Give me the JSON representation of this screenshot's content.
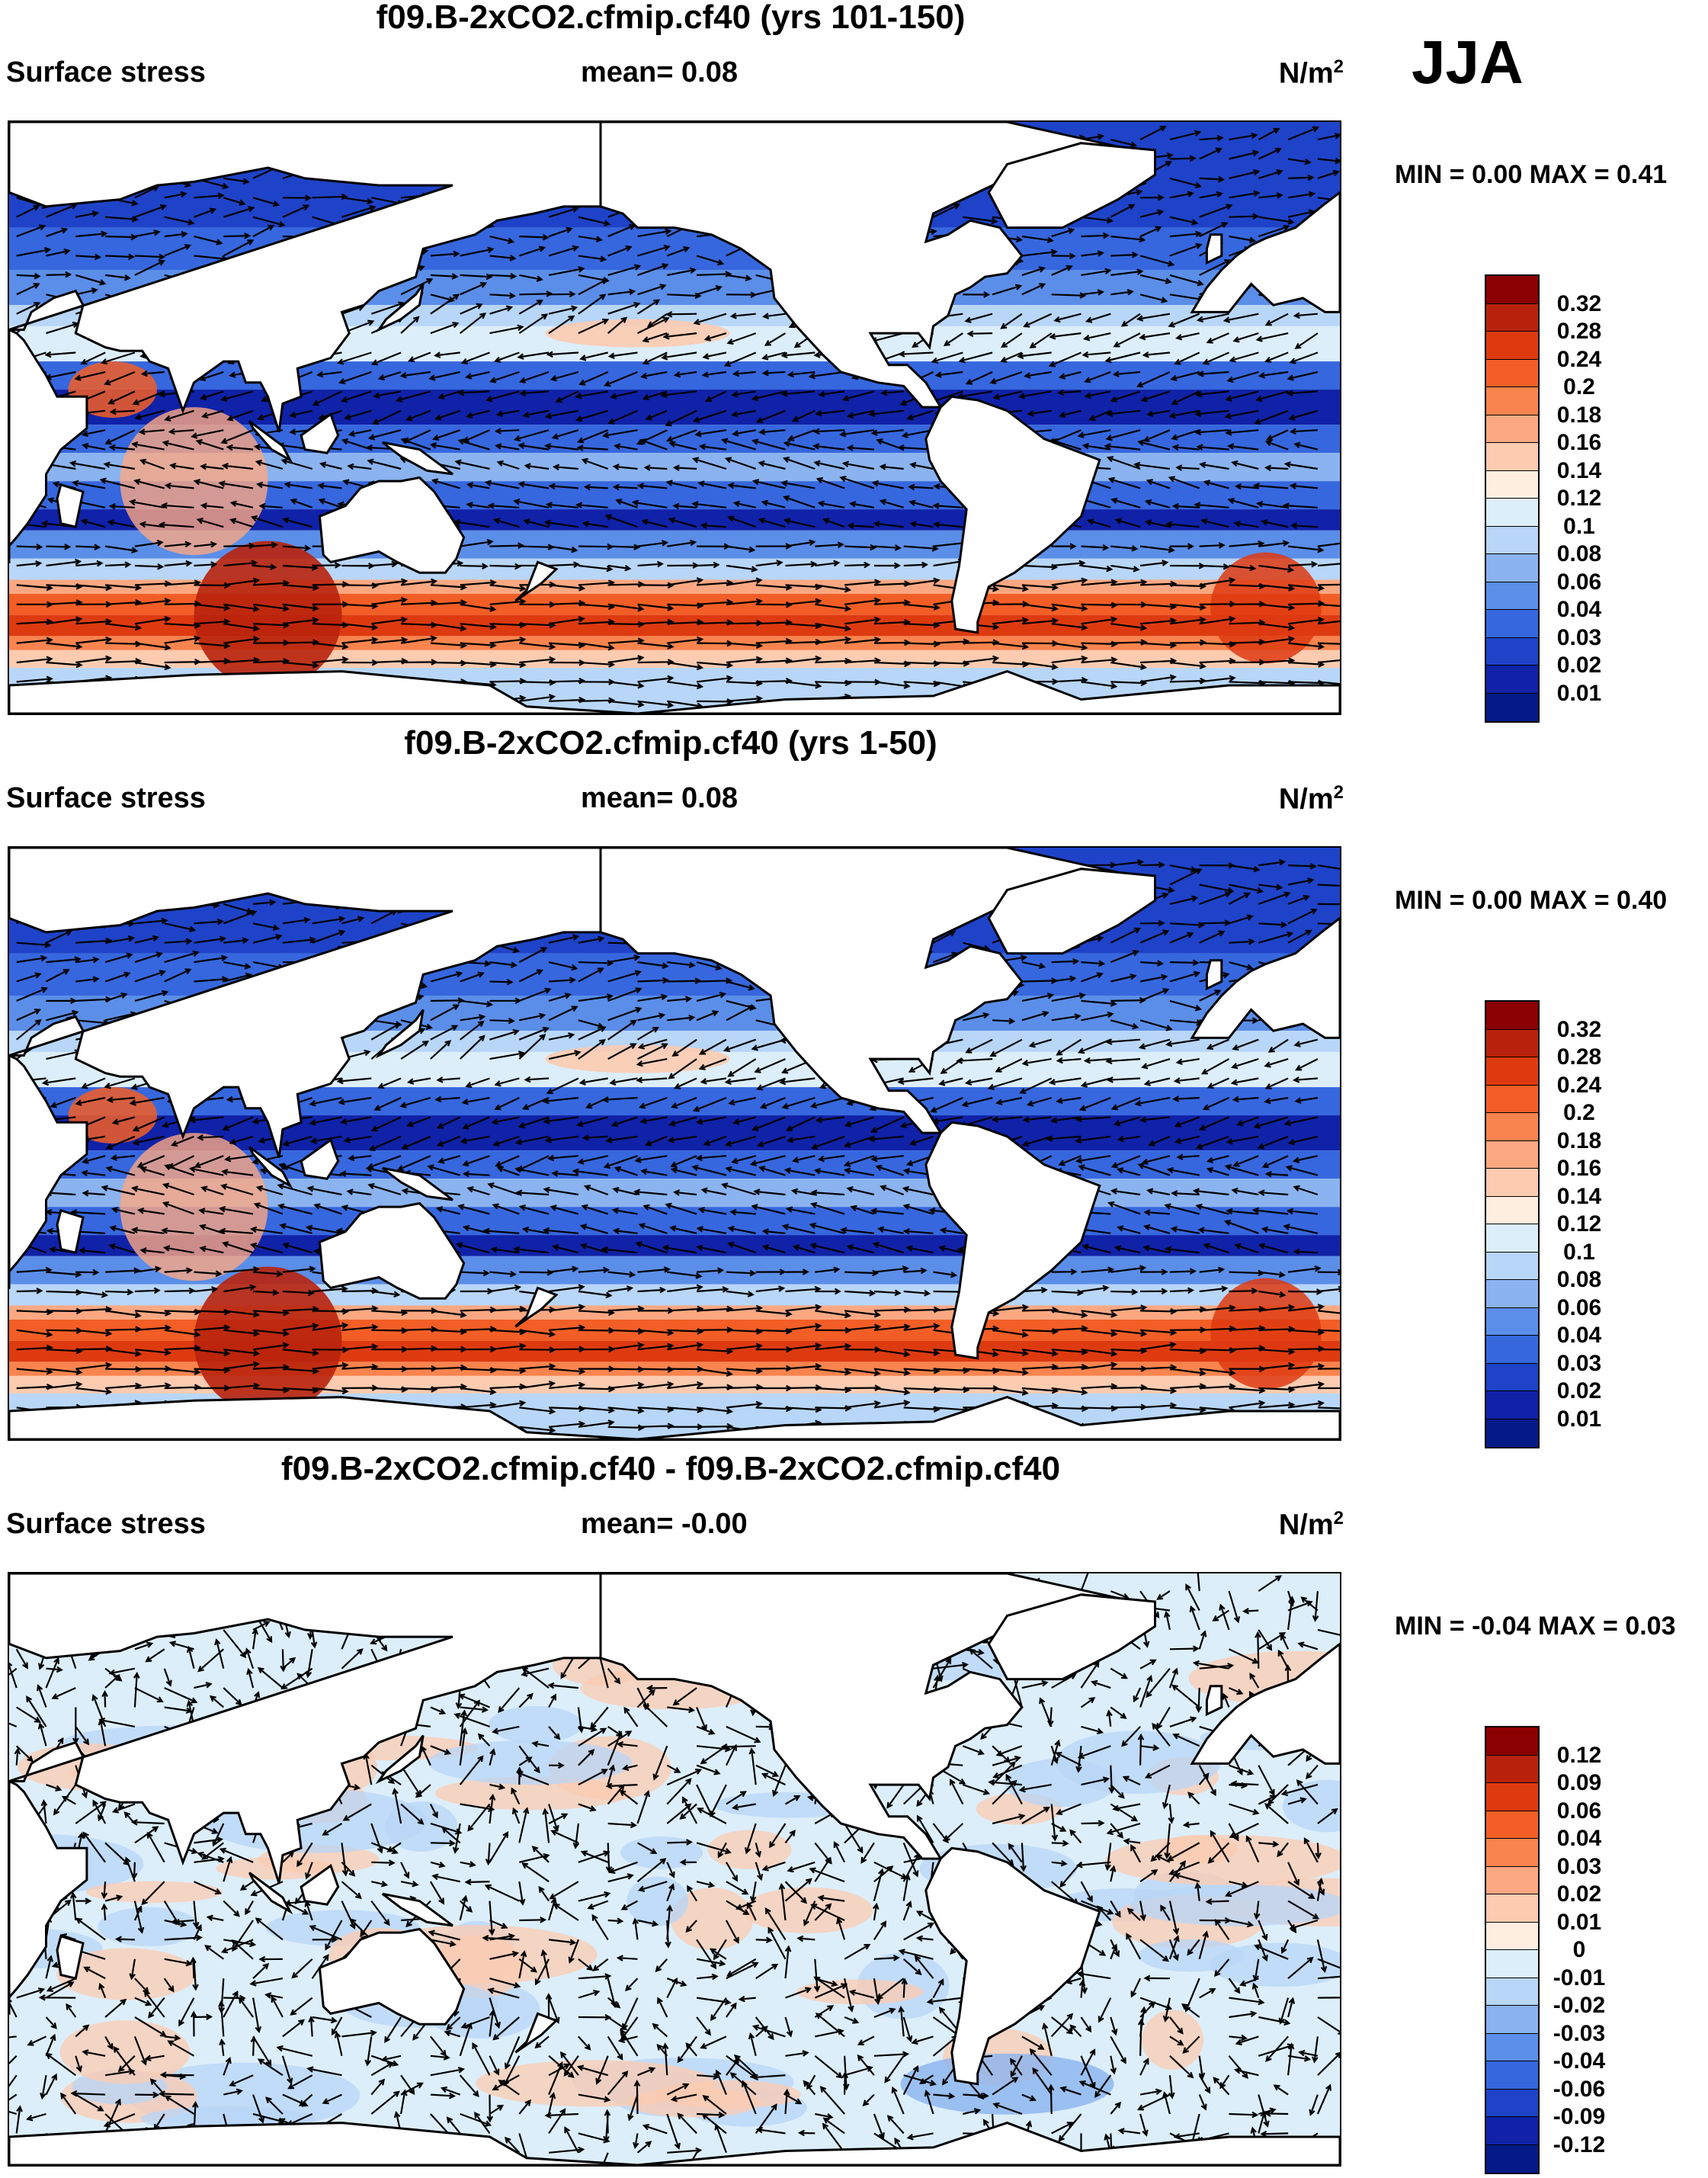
{
  "season_label": "JJA",
  "panels": [
    {
      "title": "f09.B-2xCO2.cfmip.cf40 (yrs 101-150)",
      "variable": "Surface stress",
      "mean_label": "mean=   0.08",
      "units_main": "N/m",
      "units_exp": "2",
      "minmax_label": "MIN =   0.00  MAX =   0.41",
      "min": 0.0,
      "max": 0.41,
      "colorbar": {
        "labels": [
          "0.32",
          "0.28",
          "0.24",
          "0.2",
          "0.18",
          "0.16",
          "0.14",
          "0.12",
          "0.1",
          "0.08",
          "0.06",
          "0.04",
          "0.03",
          "0.02",
          "0.01"
        ],
        "colors": [
          "#8b0000",
          "#b8220c",
          "#de3a10",
          "#f25e26",
          "#f9844e",
          "#fba882",
          "#fccbb0",
          "#feeee0",
          "#dceefa",
          "#b8d6f7",
          "#8ab3ef",
          "#5b8ee8",
          "#3667de",
          "#1e43c8",
          "#0f22a8",
          "#041a86"
        ]
      },
      "field_type": "mean_stress"
    },
    {
      "title": "f09.B-2xCO2.cfmip.cf40 (yrs 1-50)",
      "variable": "Surface stress",
      "mean_label": "mean=   0.08",
      "units_main": "N/m",
      "units_exp": "2",
      "minmax_label": "MIN =   0.00  MAX =   0.40",
      "min": 0.0,
      "max": 0.4,
      "colorbar": {
        "labels": [
          "0.32",
          "0.28",
          "0.24",
          "0.2",
          "0.18",
          "0.16",
          "0.14",
          "0.12",
          "0.1",
          "0.08",
          "0.06",
          "0.04",
          "0.03",
          "0.02",
          "0.01"
        ],
        "colors": [
          "#8b0000",
          "#b8220c",
          "#de3a10",
          "#f25e26",
          "#f9844e",
          "#fba882",
          "#fccbb0",
          "#feeee0",
          "#dceefa",
          "#b8d6f7",
          "#8ab3ef",
          "#5b8ee8",
          "#3667de",
          "#1e43c8",
          "#0f22a8",
          "#041a86"
        ]
      },
      "field_type": "mean_stress"
    },
    {
      "title": "f09.B-2xCO2.cfmip.cf40 - f09.B-2xCO2.cfmip.cf40",
      "variable": "Surface stress",
      "mean_label": "mean=  -0.00",
      "units_main": "N/m",
      "units_exp": "2",
      "minmax_label": "MIN =  -0.04  MAX =   0.03",
      "min": -0.04,
      "max": 0.03,
      "colorbar": {
        "labels": [
          "0.12",
          "0.09",
          "0.06",
          "0.04",
          "0.03",
          "0.02",
          "0.01",
          "0",
          "-0.01",
          "-0.02",
          "-0.03",
          "-0.04",
          "-0.06",
          "-0.09",
          "-0.12"
        ],
        "colors": [
          "#8b0000",
          "#b8220c",
          "#de3a10",
          "#f25e26",
          "#f9844e",
          "#fba882",
          "#fccbb0",
          "#feeee0",
          "#dceefa",
          "#b8d6f7",
          "#8ab3ef",
          "#5b8ee8",
          "#3667de",
          "#1e43c8",
          "#0f22a8",
          "#041a86"
        ]
      },
      "field_type": "difference"
    }
  ],
  "colors": {
    "land": "#ffffff",
    "coast": "#000000",
    "arrow": "#000000"
  }
}
